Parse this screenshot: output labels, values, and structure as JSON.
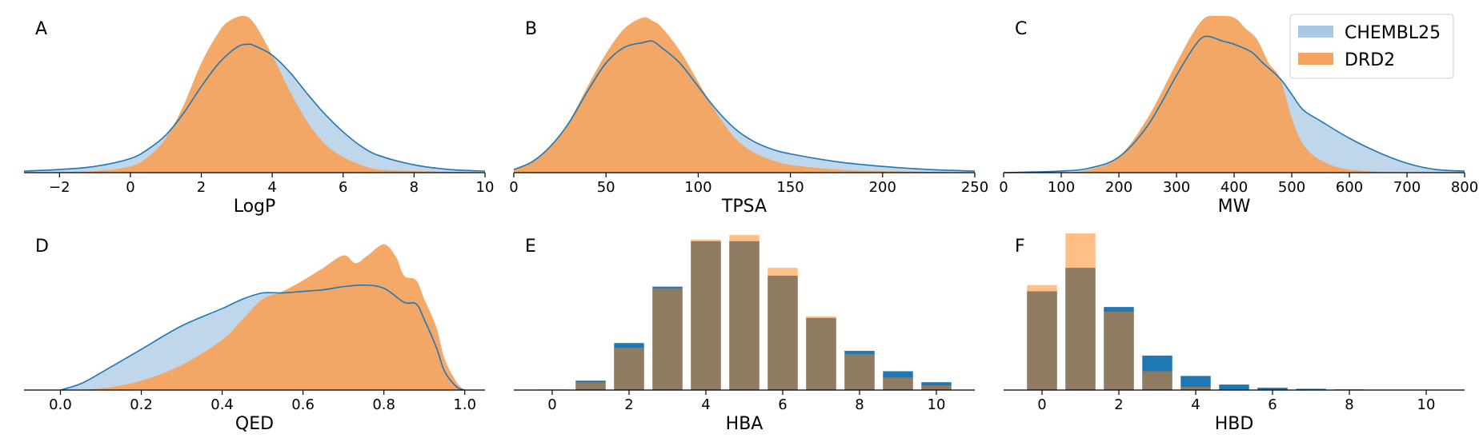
{
  "colors": {
    "chembl": "#1f77b4",
    "chembl_fill": "#aac8e4",
    "drd2": "#ff7f0e",
    "drd2_fill": "#f4a460"
  },
  "legend": {
    "placement": "top-right",
    "entries": [
      "CHEMBL25",
      "DRD2"
    ]
  },
  "chart_data": [
    {
      "type": "area",
      "panel": "A",
      "xlabel": "LogP",
      "xlim": [
        -3,
        10
      ],
      "ticks": [
        -2,
        0,
        2,
        4,
        6,
        8,
        10
      ],
      "tick_labels": [
        "−2",
        "0",
        "2",
        "4",
        "6",
        "8",
        "10"
      ],
      "series": [
        {
          "name": "CHEMBL25",
          "x": [
            -3,
            -2,
            -1,
            0,
            0.5,
            1,
            1.5,
            2,
            2.5,
            3,
            3.3,
            3.5,
            4,
            4.5,
            5,
            5.5,
            6,
            6.5,
            7,
            8,
            9,
            10
          ],
          "y": [
            0.01,
            0.02,
            0.04,
            0.09,
            0.15,
            0.24,
            0.38,
            0.55,
            0.7,
            0.8,
            0.82,
            0.81,
            0.75,
            0.64,
            0.5,
            0.37,
            0.26,
            0.17,
            0.11,
            0.05,
            0.02,
            0.01
          ]
        },
        {
          "name": "DRD2",
          "x": [
            -3,
            -1,
            0,
            0.5,
            1,
            1.5,
            2,
            2.5,
            2.8,
            3.2,
            3.5,
            4,
            4.5,
            5,
            5.5,
            6,
            6.5,
            7,
            8,
            10
          ],
          "y": [
            0.0,
            0.01,
            0.04,
            0.1,
            0.22,
            0.43,
            0.7,
            0.9,
            0.97,
            1.0,
            0.95,
            0.75,
            0.52,
            0.32,
            0.18,
            0.1,
            0.05,
            0.02,
            0.01,
            0.0
          ]
        }
      ]
    },
    {
      "type": "area",
      "panel": "B",
      "xlabel": "TPSA",
      "xlim": [
        0,
        250
      ],
      "ticks": [
        0,
        50,
        100,
        150,
        200,
        250
      ],
      "tick_labels": [
        "0",
        "50",
        "100",
        "150",
        "200",
        "250"
      ],
      "series": [
        {
          "name": "CHEMBL25",
          "x": [
            0,
            10,
            20,
            30,
            40,
            50,
            60,
            70,
            75,
            80,
            90,
            100,
            110,
            120,
            130,
            140,
            150,
            175,
            200,
            225,
            250
          ],
          "y": [
            0.02,
            0.07,
            0.17,
            0.32,
            0.52,
            0.7,
            0.8,
            0.83,
            0.84,
            0.8,
            0.7,
            0.55,
            0.4,
            0.28,
            0.2,
            0.15,
            0.12,
            0.07,
            0.04,
            0.02,
            0.01
          ]
        },
        {
          "name": "DRD2",
          "x": [
            0,
            10,
            20,
            30,
            40,
            50,
            60,
            70,
            75,
            80,
            90,
            100,
            110,
            120,
            130,
            140,
            150,
            175,
            200,
            250
          ],
          "y": [
            0.02,
            0.07,
            0.17,
            0.33,
            0.55,
            0.76,
            0.92,
            0.99,
            0.97,
            0.93,
            0.78,
            0.58,
            0.38,
            0.22,
            0.13,
            0.08,
            0.05,
            0.02,
            0.01,
            0.0
          ]
        }
      ]
    },
    {
      "type": "area",
      "panel": "C",
      "xlabel": "MW",
      "xlim": [
        0,
        800
      ],
      "ticks": [
        0,
        100,
        200,
        300,
        400,
        500,
        600,
        700,
        800
      ],
      "tick_labels": [
        "0",
        "100",
        "200",
        "300",
        "400",
        "500",
        "600",
        "700",
        "800"
      ],
      "series": [
        {
          "name": "CHEMBL25",
          "x": [
            0,
            100,
            150,
            200,
            250,
            300,
            330,
            350,
            380,
            400,
            430,
            450,
            480,
            500,
            520,
            550,
            600,
            650,
            700,
            750,
            800
          ],
          "y": [
            0.0,
            0.01,
            0.03,
            0.1,
            0.3,
            0.62,
            0.8,
            0.87,
            0.84,
            0.82,
            0.77,
            0.7,
            0.6,
            0.5,
            0.4,
            0.33,
            0.22,
            0.13,
            0.06,
            0.02,
            0.01
          ]
        },
        {
          "name": "DRD2",
          "x": [
            0,
            100,
            150,
            200,
            250,
            300,
            330,
            350,
            370,
            400,
            420,
            440,
            460,
            480,
            500,
            520,
            550,
            600,
            700,
            800
          ],
          "y": [
            0.0,
            0.0,
            0.02,
            0.1,
            0.35,
            0.7,
            0.9,
            0.99,
            1.0,
            0.99,
            0.92,
            0.85,
            0.7,
            0.6,
            0.35,
            0.18,
            0.08,
            0.02,
            0.0,
            0.0
          ]
        }
      ]
    },
    {
      "type": "area",
      "panel": "D",
      "xlabel": "QED",
      "xlim": [
        -0.09,
        1.05
      ],
      "ticks": [
        0.0,
        0.2,
        0.4,
        0.6,
        0.8,
        1.0
      ],
      "tick_labels": [
        "0.0",
        "0.2",
        "0.4",
        "0.6",
        "0.8",
        "1.0"
      ],
      "series": [
        {
          "name": "CHEMBL25",
          "x": [
            0.0,
            0.05,
            0.1,
            0.2,
            0.3,
            0.4,
            0.45,
            0.5,
            0.55,
            0.6,
            0.65,
            0.7,
            0.75,
            0.8,
            0.85,
            0.88,
            0.9,
            0.93,
            0.95,
            0.98,
            1.0
          ],
          "y": [
            0.0,
            0.04,
            0.11,
            0.26,
            0.41,
            0.52,
            0.58,
            0.62,
            0.62,
            0.63,
            0.64,
            0.66,
            0.67,
            0.65,
            0.56,
            0.55,
            0.45,
            0.27,
            0.12,
            0.02,
            0.0
          ]
        },
        {
          "name": "DRD2",
          "x": [
            0.0,
            0.1,
            0.2,
            0.3,
            0.4,
            0.45,
            0.5,
            0.55,
            0.6,
            0.65,
            0.7,
            0.73,
            0.76,
            0.8,
            0.83,
            0.85,
            0.88,
            0.9,
            0.93,
            0.95,
            0.98,
            1.0
          ],
          "y": [
            0.0,
            0.01,
            0.06,
            0.16,
            0.32,
            0.45,
            0.58,
            0.63,
            0.7,
            0.78,
            0.86,
            0.81,
            0.86,
            0.93,
            0.85,
            0.73,
            0.7,
            0.58,
            0.4,
            0.2,
            0.05,
            0.0
          ]
        }
      ]
    },
    {
      "type": "bar",
      "panel": "E",
      "xlabel": "HBA",
      "xlim": [
        -1,
        11
      ],
      "ticks": [
        0,
        2,
        4,
        6,
        8,
        10
      ],
      "tick_labels": [
        "0",
        "2",
        "4",
        "6",
        "8",
        "10"
      ],
      "categories": [
        0,
        1,
        2,
        3,
        4,
        5,
        6,
        7,
        8,
        9,
        10
      ],
      "series": [
        {
          "name": "CHEMBL25",
          "values": [
            0.003,
            0.06,
            0.3,
            0.66,
            0.95,
            0.95,
            0.73,
            0.46,
            0.25,
            0.12,
            0.05
          ]
        },
        {
          "name": "DRD2",
          "values": [
            0.003,
            0.05,
            0.27,
            0.65,
            0.96,
            0.99,
            0.78,
            0.47,
            0.23,
            0.08,
            0.03
          ]
        }
      ]
    },
    {
      "type": "bar",
      "panel": "F",
      "xlabel": "HBD",
      "xlim": [
        -1,
        11
      ],
      "ticks": [
        0,
        2,
        4,
        6,
        8,
        10
      ],
      "tick_labels": [
        "0",
        "2",
        "4",
        "6",
        "8",
        "10"
      ],
      "categories": [
        0,
        1,
        2,
        3,
        4,
        5,
        6,
        7,
        8,
        9
      ],
      "series": [
        {
          "name": "CHEMBL25",
          "values": [
            0.63,
            0.78,
            0.53,
            0.22,
            0.09,
            0.035,
            0.015,
            0.008,
            0.004,
            0.002
          ]
        },
        {
          "name": "DRD2",
          "values": [
            0.67,
            1.0,
            0.5,
            0.12,
            0.02,
            0.004,
            0.0,
            0.0,
            0.0,
            0.0
          ]
        }
      ]
    }
  ]
}
